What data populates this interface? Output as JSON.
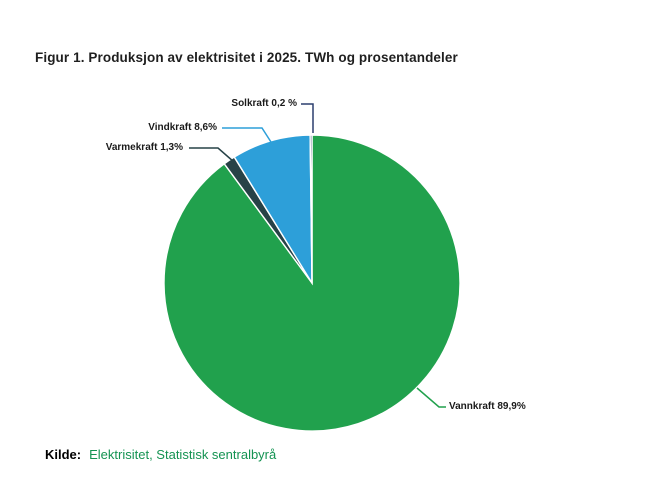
{
  "figure": {
    "title": "Figur 1. Produksjon av elektrisitet i 2025. TWh og prosentandeler",
    "source_label": "Kilde:",
    "source_text": "Elektrisitet, Statistisk sentralbyrå",
    "source_color": "#149352",
    "background_color": "#ffffff"
  },
  "chart_data": {
    "type": "pie",
    "title": "Figur 1. Produksjon av elektrisitet i 2025. TWh og prosentandeler",
    "categories": [
      "Vannkraft",
      "Varmekraft",
      "Vindkraft",
      "Solkraft"
    ],
    "values": [
      89.9,
      1.3,
      8.6,
      0.2
    ],
    "unit": "percent",
    "colors": [
      "#21a14d",
      "#274247",
      "#2d9fd9",
      "#2b3e6e"
    ],
    "labels": [
      "Vannkraft 89,9%",
      "Varmekraft 1,3%",
      "Vindkraft 8,6%",
      "Solkraft 0,2 %"
    ],
    "start_angle_deg": 0,
    "direction": "clockwise",
    "slice_border_color": "#ffffff",
    "legend_position": "none",
    "label_style": "outside-with-leader-lines"
  }
}
